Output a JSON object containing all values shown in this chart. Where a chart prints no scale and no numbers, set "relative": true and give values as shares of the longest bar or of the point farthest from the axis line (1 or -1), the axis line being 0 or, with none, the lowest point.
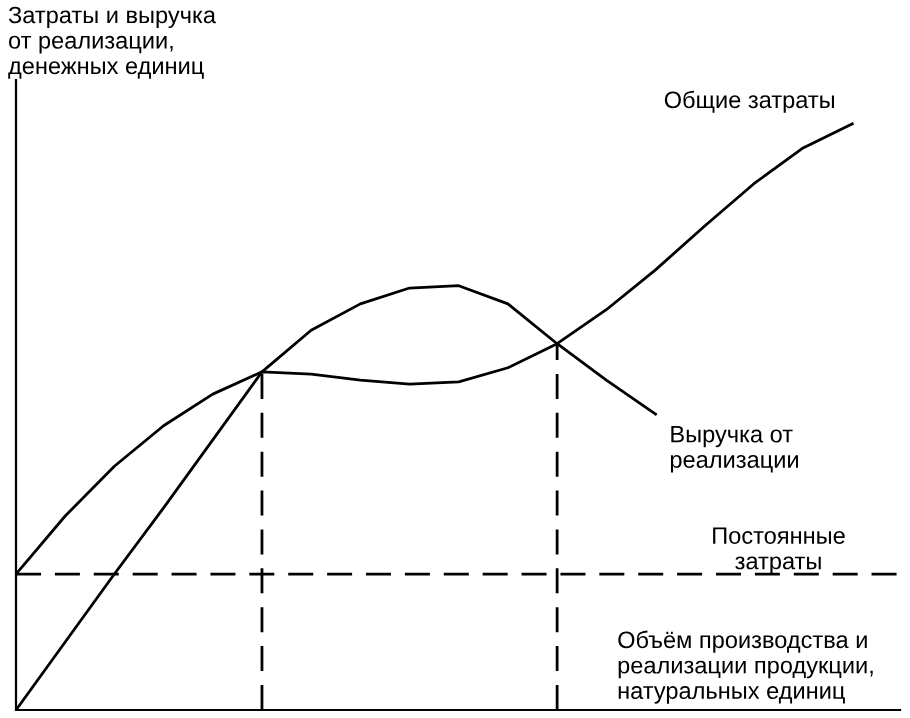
{
  "chart_data": {
    "type": "line",
    "relative": true,
    "ylabel": "Затраты и выручка\nот реализации,\nденежных единиц",
    "xlabel": "Объём производства и\nреализации продукции,\nнатуральных единиц",
    "categories": [
      null,
      null,
      null,
      null,
      null,
      null,
      null,
      null,
      null,
      null,
      null,
      null,
      null,
      null,
      null,
      null,
      null,
      null
    ],
    "series": [
      {
        "name": "Общие затраты",
        "color": "#000000",
        "values": [
          0.232,
          0.331,
          0.416,
          0.485,
          0.539,
          0.577,
          0.573,
          0.563,
          0.556,
          0.56,
          0.584,
          0.625,
          0.683,
          0.751,
          0.826,
          0.898,
          0.959,
          1.0
        ]
      },
      {
        "name": "Выручка от\nреализации",
        "color": "#000000",
        "values": [
          0,
          0.116,
          0.232,
          0.345,
          0.461,
          0.577,
          0.648,
          0.693,
          0.72,
          0.724,
          0.693,
          0.625,
          0.563,
          0.505,
          null,
          null,
          null,
          null
        ]
      }
    ],
    "ref_lines": [
      {
        "axis": "y",
        "value": 0.232,
        "label": "Постоянные\nзатраты",
        "color": "#000000",
        "line_style": "dashed"
      }
    ],
    "marker": "none",
    "line_style": "solid"
  }
}
